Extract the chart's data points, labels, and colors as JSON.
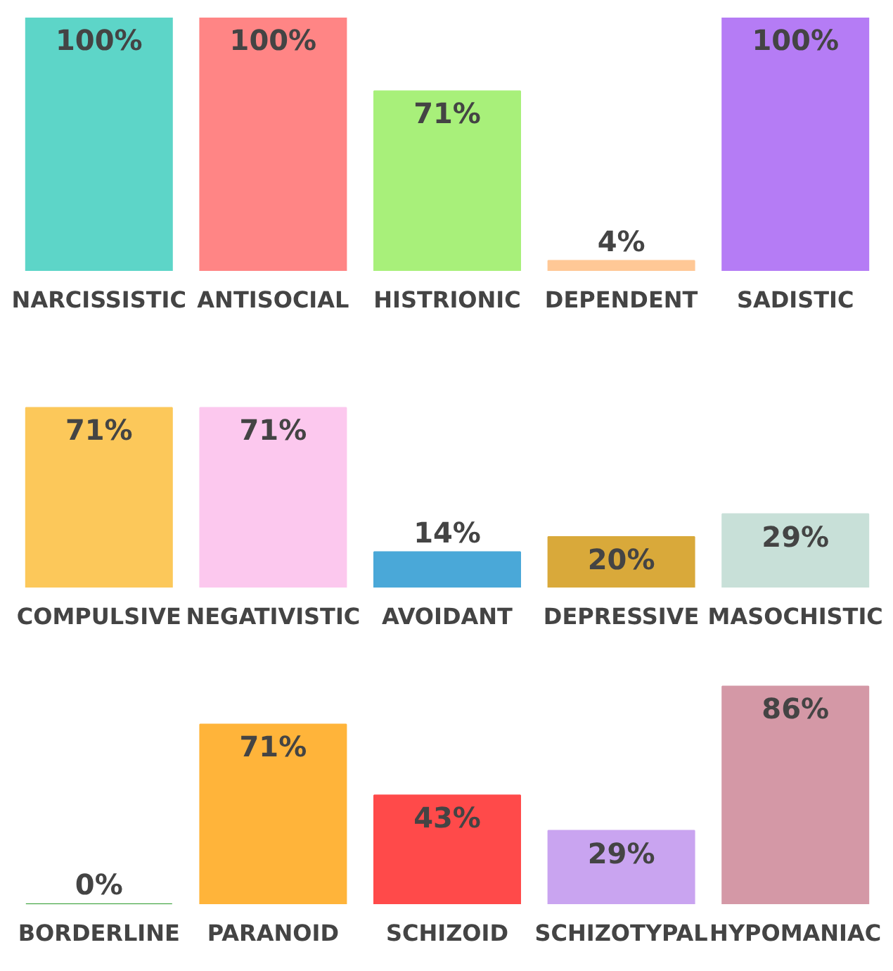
{
  "chart_data": [
    {
      "type": "bar",
      "categories": [
        "NARCISSISTIC",
        "ANTISOCIAL",
        "HISTRIONIC",
        "DEPENDENT",
        "SADISTIC"
      ],
      "values": [
        100,
        100,
        71,
        4,
        100
      ],
      "colors": [
        "#5dd5c8",
        "#ff8585",
        "#a8f07a",
        "#ffc896",
        "#b57cf5"
      ],
      "value_labels": [
        "100%",
        "100%",
        "71%",
        "4%",
        "100%"
      ],
      "tick_labels": "x"
    },
    {
      "type": "bar",
      "categories": [
        "COMPULSIVE",
        "NEGATIVISTIC",
        "AVOIDANT",
        "DEPRESSIVE",
        "MASOCHISTIC"
      ],
      "values": [
        71,
        71,
        14,
        20,
        29
      ],
      "colors": [
        "#fcc85a",
        "#fcc8ee",
        "#4aa8d8",
        "#d9a93a",
        "#c8e0d8"
      ],
      "value_labels": [
        "71%",
        "71%",
        "14%",
        "20%",
        "29%"
      ],
      "tick_labels": "x"
    },
    {
      "type": "bar",
      "categories": [
        "BORDERLINE",
        "PARANOID",
        "SCHIZOID",
        "SCHIZOTYPAL",
        "HYPOMANIAC"
      ],
      "values": [
        0,
        71,
        43,
        29,
        86
      ],
      "colors": [
        "#2a9a2a",
        "#ffb43a",
        "#ff4a4a",
        "#c9a4f0",
        "#d498a6"
      ],
      "value_labels": [
        "0%",
        "71%",
        "43%",
        "29%",
        "86%"
      ],
      "tick_labels": "x"
    }
  ]
}
